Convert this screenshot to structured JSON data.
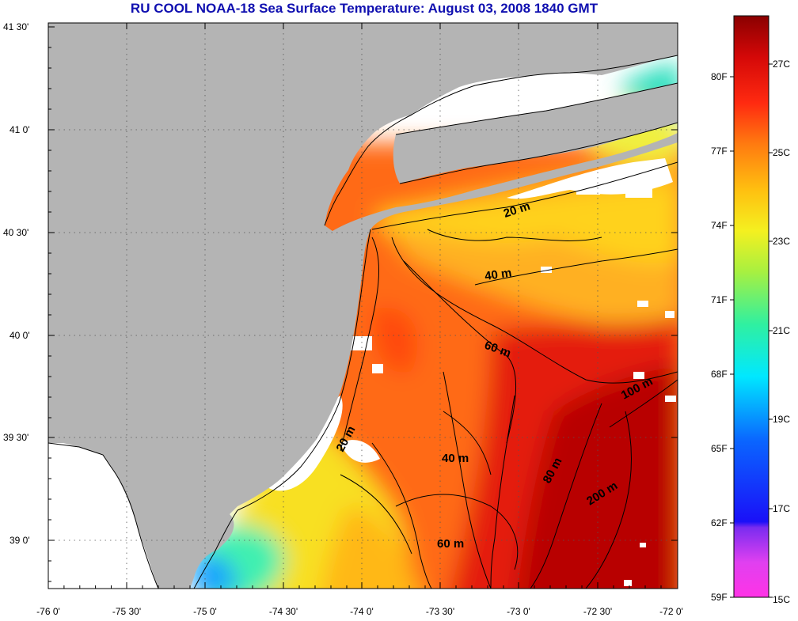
{
  "title": "RU COOL  NOAA-18  Sea Surface Temperature:  August 03, 2008 1840 GMT",
  "map": {
    "lon_range": [
      -76.0,
      -72.0
    ],
    "lat_range": [
      38.75,
      41.5
    ],
    "x_ticks": [
      "-76 0'",
      "-75 30'",
      "-75 0'",
      "-74 30'",
      "-74 0'",
      "-73 30'",
      "-73 0'",
      "-72 30'",
      "-72 0'"
    ],
    "y_ticks": [
      "41 30'",
      "41 0'",
      "40 30'",
      "40 0'",
      "39 30'",
      "39 0'"
    ],
    "grid": "dotted",
    "land_color": "#b4b4b4",
    "no_data_color": "#ffffff",
    "contour_labels": [
      "20 m",
      "40 m",
      "60 m",
      "20 m",
      "40 m",
      "60 m",
      "80 m",
      "100 m",
      "200 m"
    ]
  },
  "colorbar": {
    "fahrenheit_labels": [
      "80F",
      "77F",
      "74F",
      "71F",
      "68F",
      "65F",
      "62F",
      "59F"
    ],
    "celsius_labels": [
      "27C",
      "25C",
      "23C",
      "21C",
      "19C",
      "17C",
      "15C"
    ],
    "range_celsius": [
      15,
      28
    ]
  }
}
